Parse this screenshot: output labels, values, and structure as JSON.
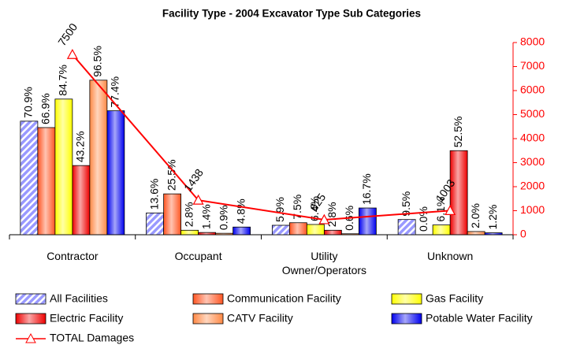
{
  "chart_data": {
    "type": "bar",
    "title": "Facility Type - 2004 Excavator Type Sub Categories",
    "categories": [
      "Contractor",
      "Occupant",
      "Utility Owner/Operators",
      "Unknown"
    ],
    "ylim": [
      0,
      120
    ],
    "y2lim": [
      0,
      8000
    ],
    "y2ticks": [
      0,
      1000,
      2000,
      3000,
      4000,
      5000,
      6000,
      7000,
      8000
    ],
    "legend": "bottom",
    "series": [
      {
        "name": "All Facilities",
        "color": "#9999ff",
        "pattern": "hatch",
        "values": [
          70.9,
          13.6,
          5.9,
          9.5
        ],
        "value_labels": [
          "70.9%",
          "13.6%",
          "5.9%",
          "9.5%"
        ]
      },
      {
        "name": "Communication Facility",
        "color": "#ff5522",
        "values": [
          66.9,
          25.5,
          7.5,
          0.0
        ],
        "value_labels": [
          "66.9%",
          "25.5%",
          "7.5%",
          "0.0%"
        ]
      },
      {
        "name": "Gas Facility",
        "color": "#ffff00",
        "values": [
          84.7,
          2.8,
          6.4,
          6.1
        ],
        "value_labels": [
          "84.7%",
          "2.8%",
          "6.4%",
          "6.1%"
        ]
      },
      {
        "name": "Electric Facility",
        "color": "#ee0000",
        "values": [
          43.2,
          1.4,
          2.8,
          52.5
        ],
        "value_labels": [
          "43.2%",
          "1.4%",
          "2.8%",
          "52.5%"
        ]
      },
      {
        "name": "CATV Facility",
        "color": "#ff8844",
        "values": [
          96.5,
          0.9,
          0.6,
          2.0
        ],
        "value_labels": [
          "96.5%",
          "0.9%",
          "0.6%",
          "2.0%"
        ]
      },
      {
        "name": "Potable Water Facility",
        "color": "#0000ee",
        "values": [
          77.4,
          4.8,
          16.7,
          1.2
        ],
        "value_labels": [
          "77.4%",
          "4.8%",
          "16.7%",
          "1.2%"
        ]
      },
      {
        "name": "TOTAL Damages",
        "type": "line",
        "axis": "y2",
        "color": "#ff0000",
        "values": [
          7500,
          1438,
          625,
          1003
        ]
      }
    ]
  }
}
